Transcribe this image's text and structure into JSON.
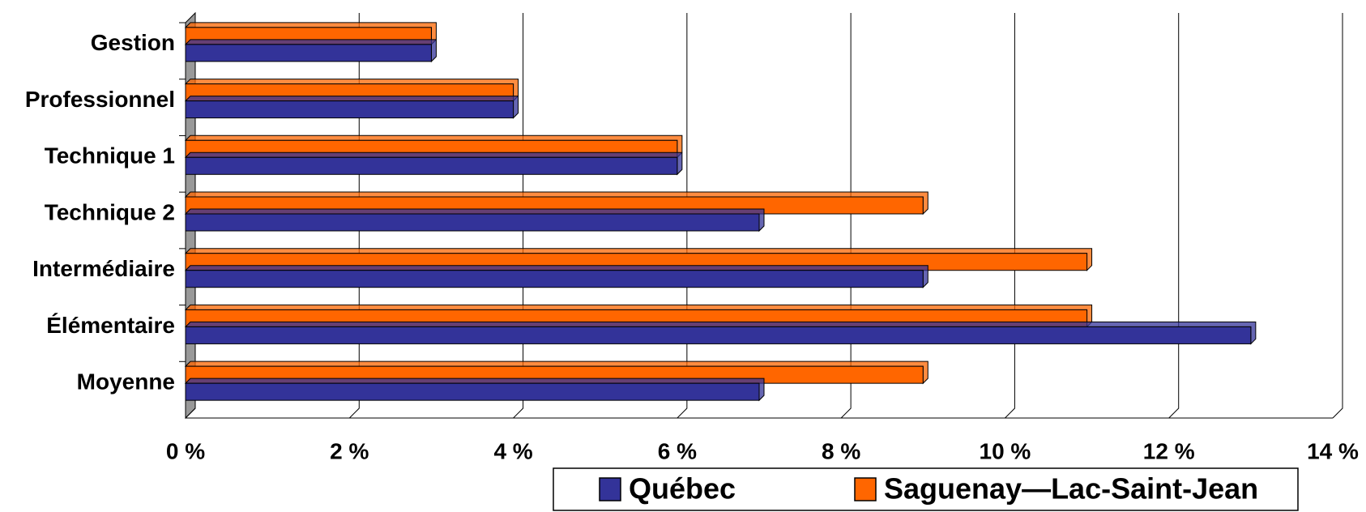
{
  "chart_data": {
    "type": "bar",
    "orientation": "horizontal",
    "categories": [
      "Gestion",
      "Professionnel",
      "Technique 1",
      "Technique 2",
      "Intermédiaire",
      "Élémentaire",
      "Moyenne"
    ],
    "series": [
      {
        "name": "Québec",
        "color": "#333399",
        "values": [
          3,
          4,
          6,
          7,
          9,
          13,
          7
        ]
      },
      {
        "name": "Saguenay—Lac-Saint-Jean",
        "color": "#ff6600",
        "values": [
          3,
          4,
          6,
          9,
          11,
          11,
          9
        ]
      }
    ],
    "xlim": [
      0,
      14
    ],
    "xticks": [
      {
        "value": 0,
        "label": "0 %"
      },
      {
        "value": 2,
        "label": "2 %"
      },
      {
        "value": 4,
        "label": "4 %"
      },
      {
        "value": 6,
        "label": "6 %"
      },
      {
        "value": 8,
        "label": "8 %"
      },
      {
        "value": 10,
        "label": "10 %"
      },
      {
        "value": 12,
        "label": "12 %"
      },
      {
        "value": 14,
        "label": "14 %"
      }
    ],
    "grid": true,
    "legend": "bottom"
  }
}
